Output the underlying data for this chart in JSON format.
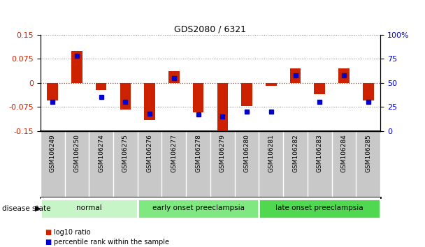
{
  "title": "GDS2080 / 6321",
  "samples": [
    "GSM106249",
    "GSM106250",
    "GSM106274",
    "GSM106275",
    "GSM106276",
    "GSM106277",
    "GSM106278",
    "GSM106279",
    "GSM106280",
    "GSM106281",
    "GSM106282",
    "GSM106283",
    "GSM106284",
    "GSM106285"
  ],
  "log10_ratio": [
    -0.055,
    0.1,
    -0.022,
    -0.083,
    -0.115,
    0.035,
    -0.092,
    -0.155,
    -0.072,
    -0.01,
    0.045,
    -0.035,
    0.045,
    -0.055
  ],
  "percentile_rank": [
    30,
    78,
    35,
    30,
    18,
    55,
    17,
    15,
    20,
    20,
    58,
    30,
    58,
    30
  ],
  "ylim_left": [
    -0.15,
    0.15
  ],
  "ylim_right": [
    0,
    100
  ],
  "yticks_left": [
    -0.15,
    -0.075,
    0,
    0.075,
    0.15
  ],
  "yticks_right": [
    0,
    25,
    50,
    75,
    100
  ],
  "ytick_labels_left": [
    "-0.15",
    "-0.075",
    "0",
    "0.075",
    "0.15"
  ],
  "ytick_labels_right": [
    "0",
    "25",
    "50",
    "75",
    "100%"
  ],
  "groups": [
    {
      "label": "normal",
      "start": 0,
      "end": 4,
      "color": "#c8f5c8"
    },
    {
      "label": "early onset preeclampsia",
      "start": 4,
      "end": 9,
      "color": "#80e880"
    },
    {
      "label": "late onset preeclampsia",
      "start": 9,
      "end": 14,
      "color": "#50d850"
    }
  ],
  "bar_width": 0.45,
  "red_color": "#cc2200",
  "blue_color": "#0000cc",
  "zero_line_color": "#cc2200",
  "bg_color": "#ffffff",
  "xtick_bg_color": "#c8c8c8",
  "legend_red": "log10 ratio",
  "legend_blue": "percentile rank within the sample",
  "disease_state_label": "disease state"
}
